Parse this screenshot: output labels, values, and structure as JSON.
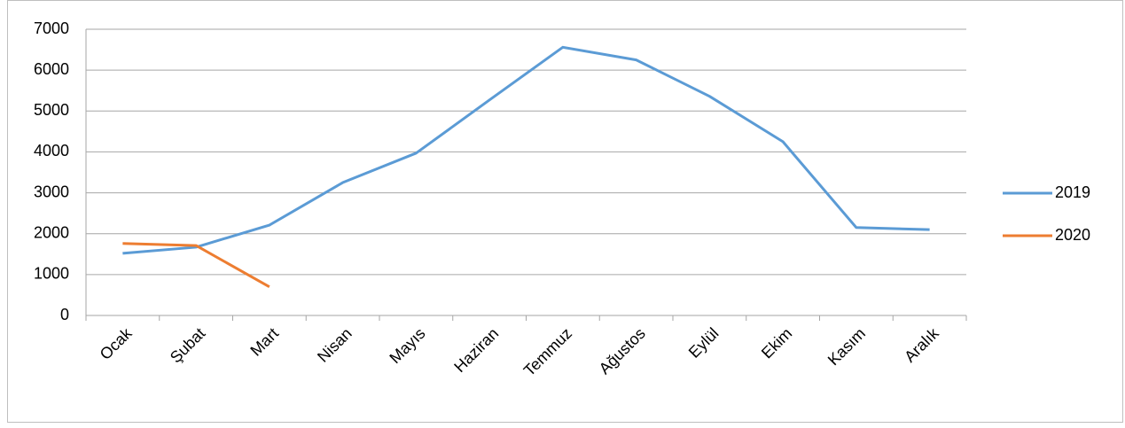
{
  "chart_data": {
    "type": "line",
    "categories": [
      "Ocak",
      "Şubat",
      "Mart",
      "Nisan",
      "Mayıs",
      "Haziran",
      "Temmuz",
      "Ağustos",
      "Eylül",
      "Ekim",
      "Kasım",
      "Aralık"
    ],
    "series": [
      {
        "name": "2019",
        "color": "#5b9bd5",
        "values": [
          1520,
          1670,
          2210,
          3250,
          3970,
          5270,
          6560,
          6250,
          5360,
          4250,
          2150,
          2100
        ]
      },
      {
        "name": "2020",
        "color": "#ed7d31",
        "values": [
          1760,
          1710,
          700,
          null,
          null,
          null,
          null,
          null,
          null,
          null,
          null,
          null
        ]
      }
    ],
    "ylim": [
      0,
      7000
    ],
    "yticks": [
      0,
      1000,
      2000,
      3000,
      4000,
      5000,
      6000,
      7000
    ],
    "grid": true,
    "legend": "right"
  }
}
